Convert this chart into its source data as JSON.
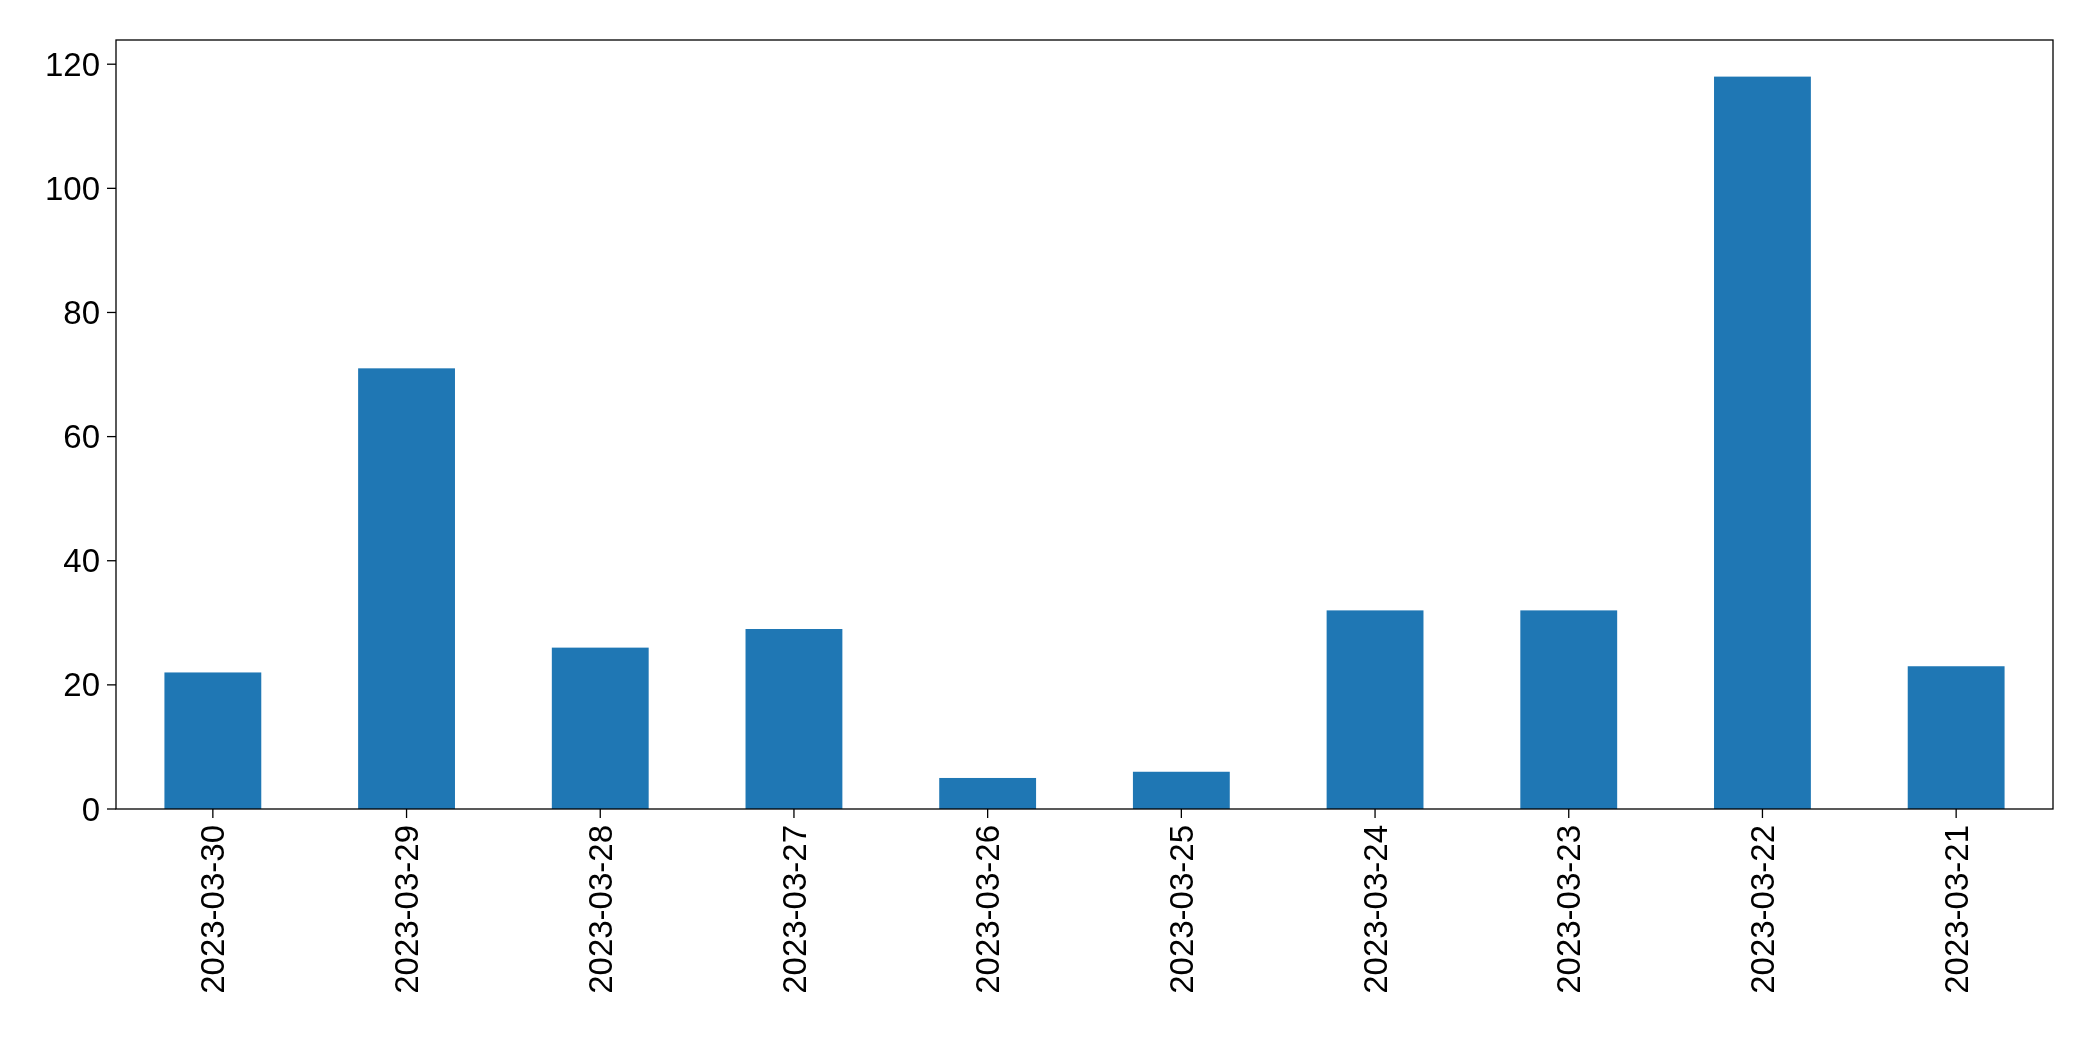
{
  "chart_data": {
    "type": "bar",
    "categories": [
      "2023-03-30",
      "2023-03-29",
      "2023-03-28",
      "2023-03-27",
      "2023-03-26",
      "2023-03-25",
      "2023-03-24",
      "2023-03-23",
      "2023-03-22",
      "2023-03-21"
    ],
    "values": [
      22,
      71,
      26,
      29,
      5,
      6,
      32,
      32,
      118,
      23
    ],
    "color": "#1f77b4",
    "ylim": [
      0,
      123.9
    ],
    "yticks": [
      0,
      20,
      40,
      60,
      80,
      100,
      120
    ],
    "grid": false
  }
}
